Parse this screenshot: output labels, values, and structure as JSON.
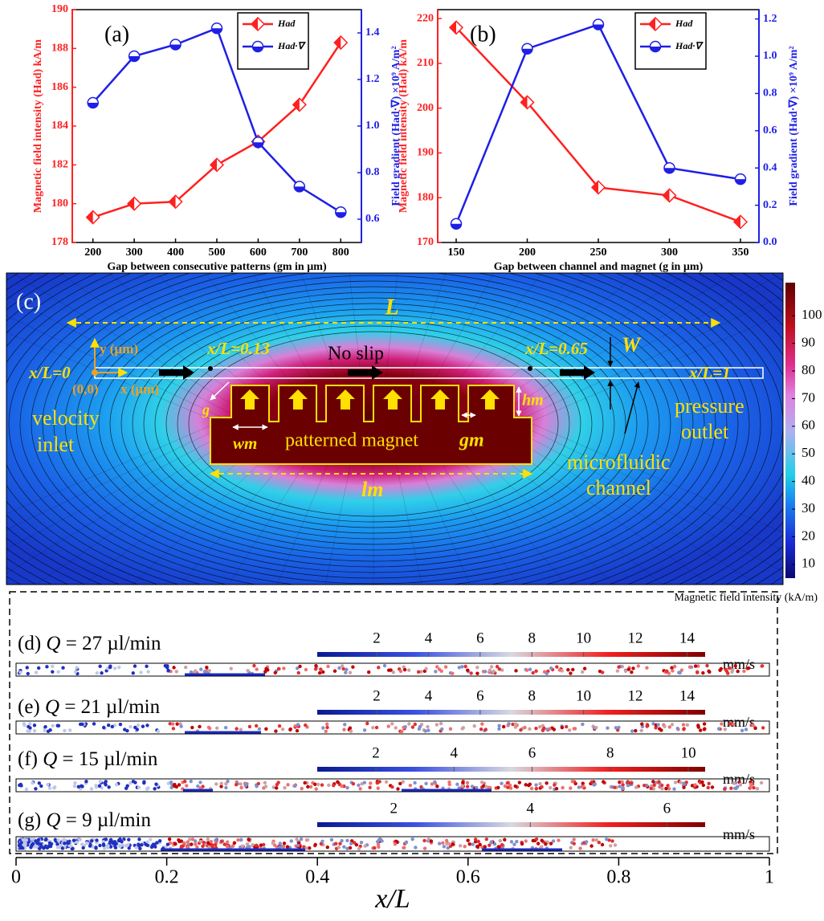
{
  "chart_data": [
    {
      "type": "line",
      "panel_label": "(a)",
      "x_label": "Gap between consecutive patterns (gm in µm)",
      "y_label": "Magnetic field intensity (Had) kA/m",
      "y2_label": "Field gradient (Had·∇) ×10⁹ A/m²",
      "x": [
        200,
        300,
        400,
        500,
        600,
        700,
        800
      ],
      "xlim": [
        150,
        850
      ],
      "xticks": [
        200,
        300,
        400,
        500,
        600,
        700,
        800
      ],
      "ylim": [
        178,
        190
      ],
      "yticks": [
        178,
        180,
        182,
        184,
        186,
        188,
        190
      ],
      "y2lim": [
        0.5,
        1.5
      ],
      "y2ticks": [
        0.6,
        0.8,
        {
          "value": 1,
          "label": "1.0"
        },
        1.2,
        1.4
      ],
      "series": [
        {
          "name": "Had",
          "color": "#ff2020",
          "values": [
            179.3,
            180.0,
            180.1,
            182.0,
            183.2,
            185.1,
            188.3
          ]
        },
        {
          "name": "Had·∇",
          "color": "#1f1fe6",
          "axis": "y2",
          "values": [
            1.1,
            1.3,
            1.35,
            1.42,
            0.93,
            0.74,
            0.63
          ]
        }
      ]
    },
    {
      "type": "line",
      "panel_label": "(b)",
      "x_label": "Gap between channel and magnet (g in µm)",
      "y_label": "Magnetic field intensity (Had) kA/m",
      "y2_label": "Field gradient (Had·∇) ×10⁹ A/m²",
      "x": [
        150,
        200,
        250,
        300,
        350
      ],
      "xlim": [
        137,
        363
      ],
      "xticks": [
        150,
        200,
        250,
        300,
        350
      ],
      "ylim": [
        170,
        222
      ],
      "yticks": [
        170,
        180,
        190,
        200,
        210,
        220
      ],
      "y2lim": [
        0,
        1.25
      ],
      "y2ticks": [
        {
          "value": 0,
          "label": "0.0"
        },
        0.2,
        0.4,
        0.6,
        0.8,
        {
          "value": 1,
          "label": "1.0"
        },
        1.2
      ],
      "series": [
        {
          "name": "Had",
          "color": "#ff2020",
          "values": [
            218.0,
            201.3,
            182.3,
            180.5,
            174.6
          ]
        },
        {
          "name": "Had·∇",
          "color": "#1f1fe6",
          "axis": "y2",
          "values": [
            0.1,
            1.04,
            1.17,
            0.4,
            0.34
          ]
        }
      ]
    }
  ],
  "panel_c": {
    "label": "(c)",
    "annotations": {
      "L": "L",
      "x13": "x/L=0.13",
      "no_slip": "No slip",
      "x65": "x/L=0.65",
      "W": "W",
      "x0": "x/L=0",
      "x1": "x/L=1",
      "y_um": "y (µm)",
      "origin": "(0,0)",
      "x_um": "x (µm)",
      "velocity": "velocity",
      "inlet": "inlet",
      "pressure": "pressure",
      "outlet": "outlet",
      "g": "g",
      "hm": "hm",
      "wm": "wm",
      "magnet": "patterned magnet",
      "gm": "gm",
      "lm": "lm",
      "microfluidic": "microfluidic",
      "channel": "channel"
    },
    "colorbar": {
      "label": "Magnetic field intensity (kA/m)",
      "range": [
        5,
        112
      ],
      "ticks": [
        10,
        20,
        30,
        40,
        50,
        60,
        70,
        80,
        90,
        100
      ]
    }
  },
  "flow_panels": [
    {
      "label": "(d)",
      "symbol": "Q",
      "rate": "= 27 µl/min",
      "unit": "mm/s",
      "range": [
        -0.3,
        14.7
      ],
      "ticks": [
        2,
        4,
        6,
        8,
        10,
        12,
        14
      ]
    },
    {
      "label": "(e)",
      "symbol": "Q",
      "rate": "= 21 µl/min",
      "unit": "mm/s",
      "range": [
        -0.3,
        14.7
      ],
      "ticks": [
        2,
        4,
        6,
        8,
        10,
        12,
        14
      ]
    },
    {
      "label": "(f)",
      "symbol": "Q",
      "rate": "= 15 µl/min",
      "unit": "mm/s",
      "range": [
        0.5,
        10.43
      ],
      "ticks": [
        2,
        4,
        6,
        8,
        10
      ]
    },
    {
      "label": "(g)",
      "symbol": "Q",
      "rate": "= 9 µl/min",
      "unit": "mm/s",
      "range": [
        0.88,
        6.56
      ],
      "ticks": [
        2,
        4,
        6
      ]
    }
  ],
  "flow_axis": {
    "label": "x/L",
    "lim": [
      0,
      1
    ],
    "ticks": [
      0,
      0.2,
      0.4,
      0.6,
      0.8,
      1
    ]
  }
}
